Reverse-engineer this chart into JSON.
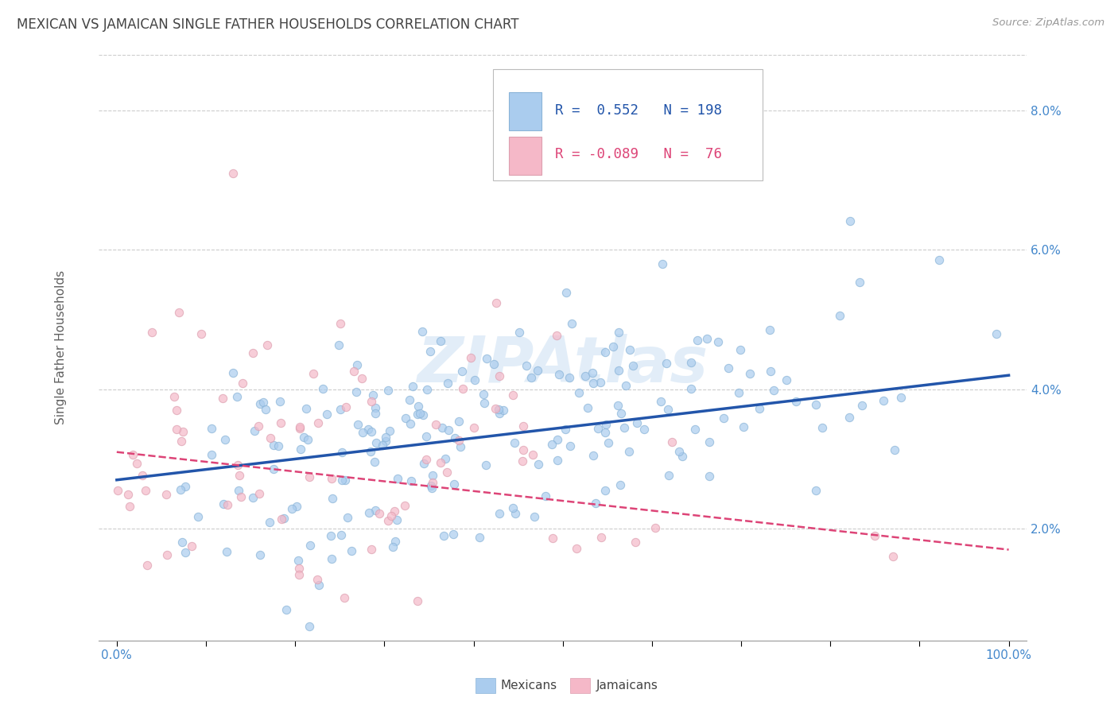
{
  "title": "MEXICAN VS JAMAICAN SINGLE FATHER HOUSEHOLDS CORRELATION CHART",
  "source": "Source: ZipAtlas.com",
  "ylabel": "Single Father Households",
  "watermark": "ZIPAtlas",
  "xlim": [
    -0.02,
    1.02
  ],
  "ylim": [
    0.004,
    0.088
  ],
  "yticks": [
    0.02,
    0.04,
    0.06,
    0.08
  ],
  "ytick_labels": [
    "2.0%",
    "4.0%",
    "6.0%",
    "8.0%"
  ],
  "xtick_left_label": "0.0%",
  "xtick_right_label": "100.0%",
  "mexican_color": "#aaccee",
  "mexican_edge_color": "#8ab4d8",
  "mexican_line_color": "#2255aa",
  "jamaican_color": "#f5b8c8",
  "jamaican_edge_color": "#dda0b0",
  "jamaican_line_color": "#dd4477",
  "mexican_R": 0.552,
  "mexican_N": 198,
  "jamaican_R": -0.089,
  "jamaican_N": 76,
  "legend_x_label": "Mexicans",
  "legend_j_label": "Jamaicans",
  "background_color": "#ffffff",
  "grid_color": "#cccccc",
  "title_color": "#444444",
  "source_color": "#999999",
  "marker_size": 55,
  "marker_alpha": 0.7,
  "random_seed": 42,
  "mex_line_y0": 0.027,
  "mex_line_y1": 0.042,
  "jam_line_y0": 0.031,
  "jam_line_y1": 0.017
}
